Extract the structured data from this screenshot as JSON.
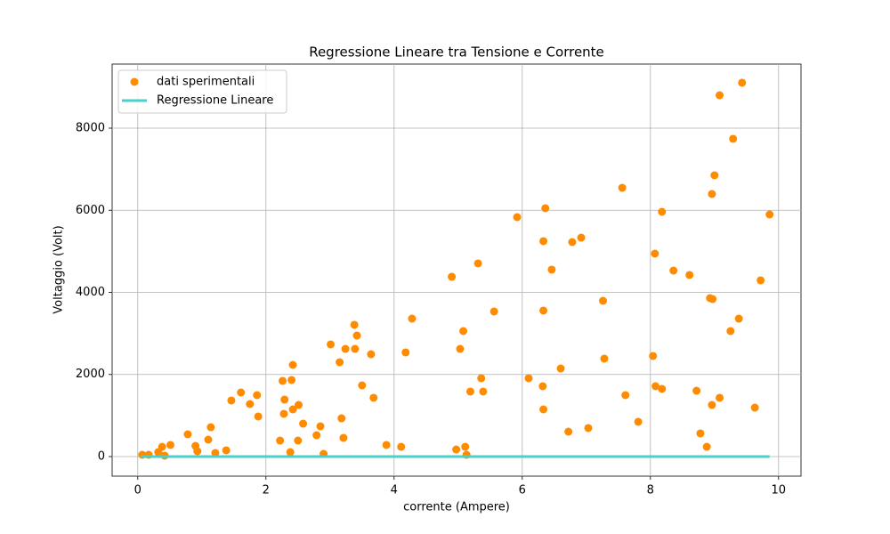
{
  "chart_data": {
    "type": "scatter",
    "title": "Regressione Lineare tra Tensione e Corrente",
    "x_label": "corrente (Ampere)",
    "y_label": "Voltaggio (Volt)",
    "xlim": [
      -0.4,
      10.35
    ],
    "ylim": [
      -477,
      9561
    ],
    "xticks": [
      0,
      2,
      4,
      6,
      8,
      10
    ],
    "yticks": [
      0,
      2000,
      4000,
      6000,
      8000
    ],
    "grid": true,
    "legend": "upper-left",
    "series": [
      {
        "name": "dati sperimentali",
        "type": "scatter",
        "color": "#ff8c00",
        "x": [
          0.07,
          0.17,
          0.32,
          0.38,
          0.42,
          0.51,
          0.78,
          0.9,
          0.93,
          1.1,
          1.14,
          1.21,
          1.38,
          1.46,
          1.61,
          1.75,
          1.86,
          1.88,
          2.22,
          2.26,
          2.29,
          2.28,
          2.38,
          2.4,
          2.42,
          2.42,
          2.5,
          2.51,
          2.58,
          2.79,
          2.85,
          2.9,
          3.01,
          3.15,
          3.18,
          3.21,
          3.24,
          3.38,
          3.39,
          3.42,
          3.5,
          3.64,
          3.68,
          3.88,
          4.11,
          4.18,
          4.28,
          4.9,
          4.97,
          5.03,
          5.08,
          5.11,
          5.13,
          5.19,
          5.31,
          5.36,
          5.39,
          5.56,
          5.92,
          6.1,
          6.32,
          6.33,
          6.33,
          6.33,
          6.36,
          6.46,
          6.6,
          6.72,
          6.78,
          6.92,
          7.03,
          7.26,
          7.28,
          7.56,
          7.61,
          7.81,
          8.04,
          8.07,
          8.08,
          8.18,
          8.18,
          8.36,
          8.61,
          8.72,
          8.78,
          8.88,
          8.93,
          8.96,
          8.97,
          8.96,
          9.0,
          9.08,
          9.08,
          9.25,
          9.29,
          9.38,
          9.43,
          9.63,
          9.72,
          9.86
        ],
        "values": [
          43,
          43,
          108,
          238,
          22,
          282,
          542,
          260,
          130,
          412,
          715,
          87,
          152,
          1366,
          1561,
          1279,
          1496,
          976,
          390,
          1843,
          1388,
          1041,
          108,
          1865,
          2233,
          1149,
          390,
          1257,
          802,
          520,
          737,
          65,
          2732,
          2298,
          932,
          455,
          2623,
          3209,
          2623,
          2948,
          1734,
          2493,
          1431,
          282,
          238,
          2537,
          3360,
          4379,
          173,
          2623,
          3057,
          238,
          43,
          1583,
          4705,
          1908,
          1583,
          3534,
          5832,
          1908,
          1713,
          1149,
          3556,
          5247,
          6049,
          4553,
          2146,
          607,
          5225,
          5333,
          694,
          3794,
          2385,
          6547,
          1496,
          846,
          2450,
          4943,
          1713,
          5962,
          1648,
          4531,
          4423,
          1604,
          564,
          238,
          3859,
          6396,
          3837,
          1257,
          6851,
          8802,
          1431,
          3057,
          7740,
          3360,
          9106,
          1192,
          4293,
          5897
        ]
      },
      {
        "name": "Regressione Lineare",
        "type": "line",
        "color": "#48d1cc",
        "x": [
          0.05,
          9.86
        ],
        "values": [
          0,
          0
        ]
      }
    ]
  }
}
